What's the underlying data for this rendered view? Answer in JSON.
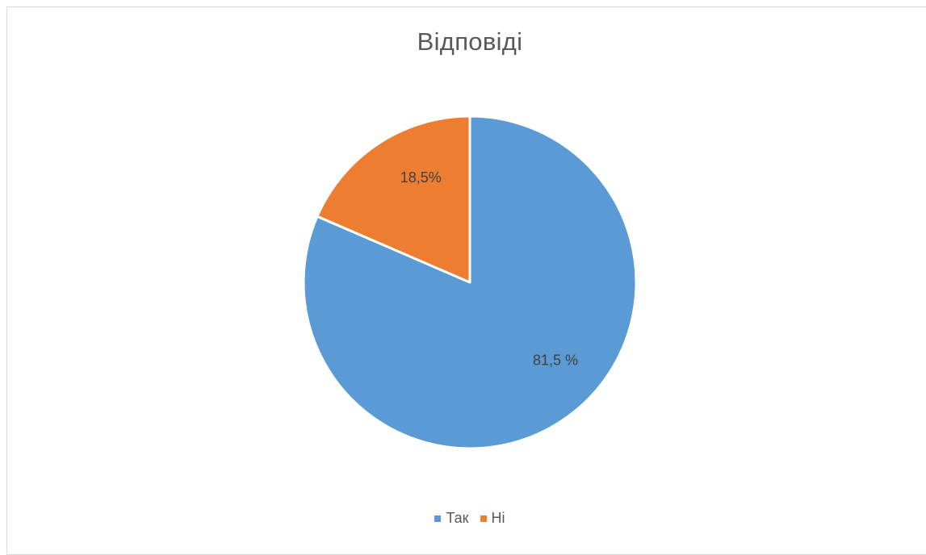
{
  "chart_data": {
    "type": "pie",
    "title": "Відповіді",
    "categories": [
      "Так",
      "Ні"
    ],
    "values": [
      81.5,
      18.5
    ],
    "data_labels": [
      "81,5 %",
      "18,5%"
    ],
    "colors": [
      "#5b9bd5",
      "#ed7d31"
    ],
    "legend_position": "bottom",
    "start_angle_deg": 0,
    "direction": "clockwise"
  }
}
